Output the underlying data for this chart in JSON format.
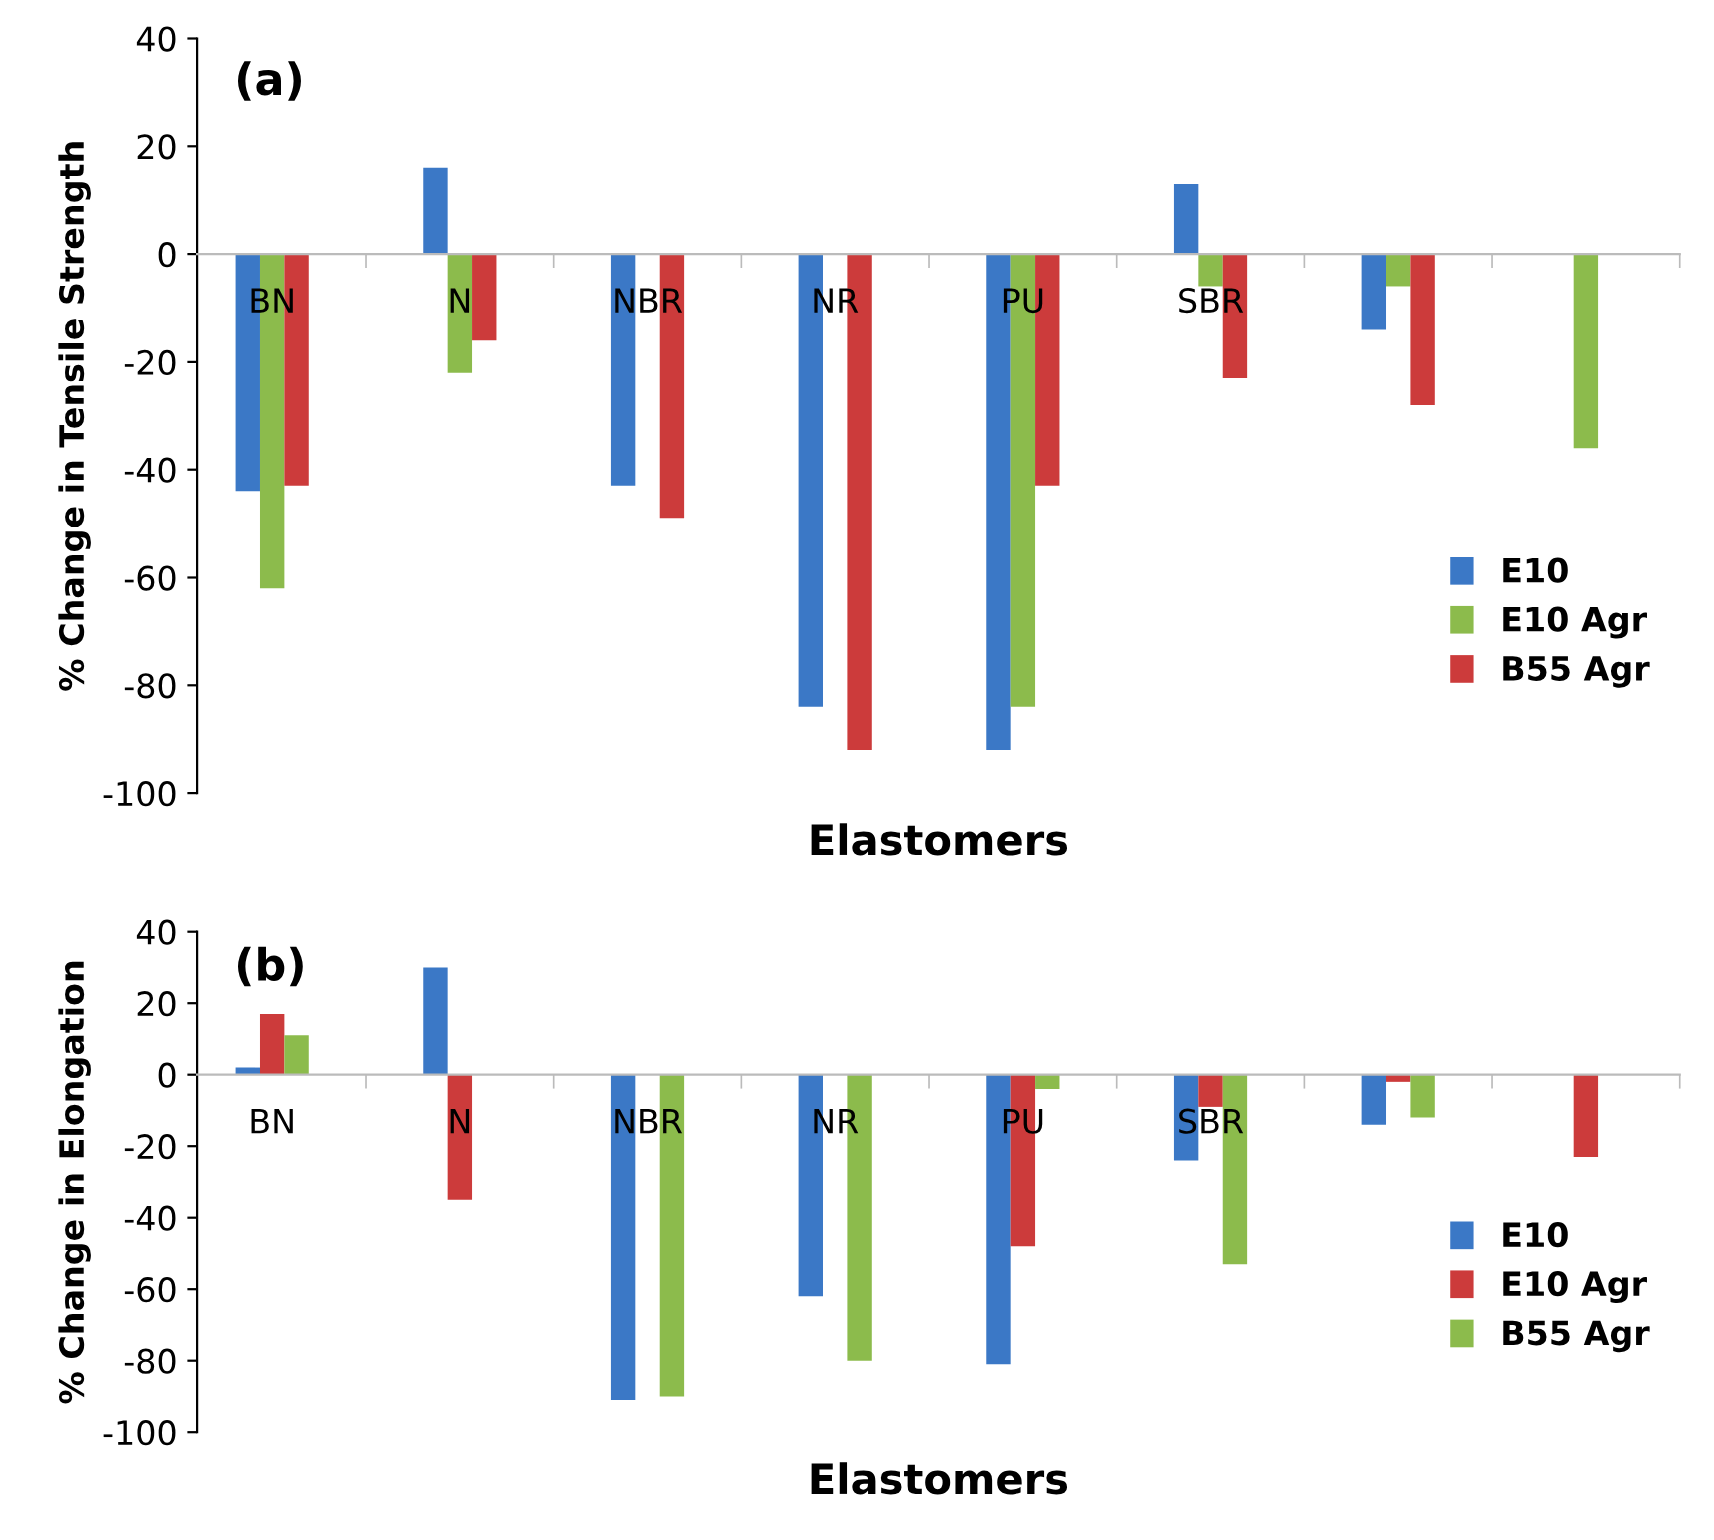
{
  "chart_data": [
    {
      "type": "bar",
      "annotations": [
        "(a)"
      ],
      "xlabel": "Elastomers",
      "ylabel": "% Change in Tensile Strength",
      "categories": [
        "BN",
        "N",
        "NBR",
        "NR",
        "PU",
        "SBR",
        null,
        null
      ],
      "series": [
        {
          "name": "E10",
          "color": "#3b78c6",
          "values": [
            -44,
            16,
            -43,
            -84,
            -92,
            13,
            -14,
            null
          ]
        },
        {
          "name": "E10 Agr",
          "color": "#8cbb4c",
          "values": [
            -62,
            -22,
            null,
            null,
            -84,
            -6,
            -6,
            -36
          ]
        },
        {
          "name": "B55 Agr",
          "color": "#cc3b3b",
          "values": [
            -43,
            -16,
            -49,
            -92,
            -43,
            -23,
            -28,
            null
          ]
        }
      ],
      "ylim": [
        -100,
        40
      ],
      "yticks": [
        -100,
        -80,
        -60,
        -40,
        -20,
        0,
        20,
        40
      ],
      "grid": false,
      "legend": "bottom right"
    },
    {
      "type": "bar",
      "annotations": [
        "(b)"
      ],
      "xlabel": "Elastomers",
      "ylabel": "% Change in Elongation",
      "categories": [
        "BN",
        "N",
        "NBR",
        "NR",
        "PU",
        "SBR",
        null,
        null
      ],
      "series": [
        {
          "name": "E10",
          "color": "#3b78c6",
          "values": [
            2,
            30,
            -91,
            -62,
            -81,
            -24,
            -14,
            null
          ]
        },
        {
          "name": "E10 Agr",
          "color": "#cc3b3b",
          "values": [
            17,
            -35,
            null,
            null,
            -48,
            -9,
            -2,
            -23
          ]
        },
        {
          "name": "B55 Agr",
          "color": "#8cbb4c",
          "values": [
            11,
            null,
            -90,
            -80,
            -4,
            -53,
            -12,
            null
          ]
        }
      ],
      "ylim": [
        -100,
        40
      ],
      "yticks": [
        -100,
        -80,
        -60,
        -40,
        -20,
        0,
        20,
        40
      ],
      "grid": false,
      "legend": "bottom right"
    }
  ]
}
